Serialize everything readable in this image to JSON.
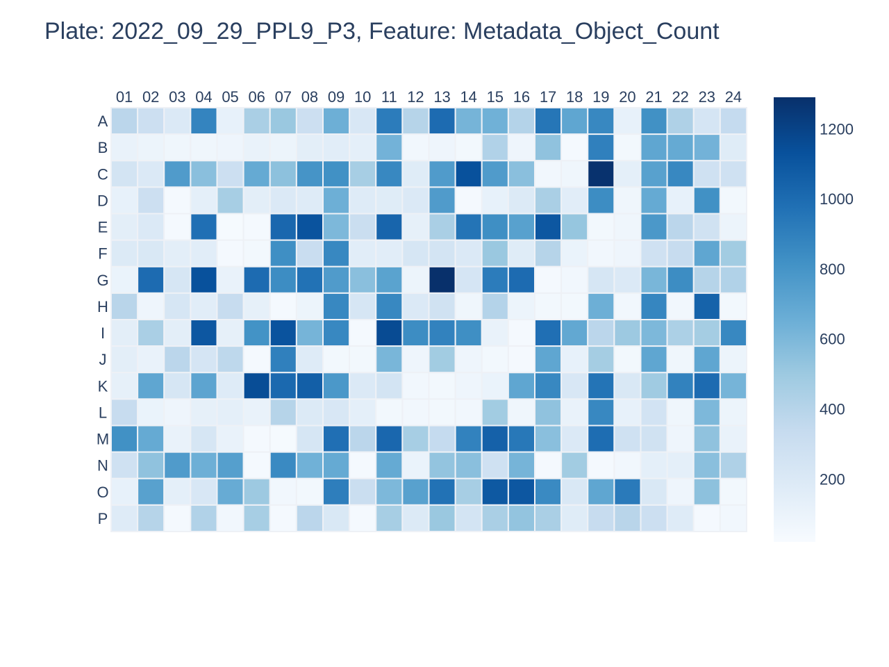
{
  "chart_data": {
    "type": "heatmap",
    "title": "Plate: 2022_09_29_PPL9_P3, Feature: Metadata_Object_Count",
    "columns": [
      "01",
      "02",
      "03",
      "04",
      "05",
      "06",
      "07",
      "08",
      "09",
      "10",
      "11",
      "12",
      "13",
      "14",
      "15",
      "16",
      "17",
      "18",
      "19",
      "20",
      "21",
      "22",
      "23",
      "24"
    ],
    "rows": [
      "A",
      "B",
      "C",
      "D",
      "E",
      "F",
      "G",
      "H",
      "I",
      "J",
      "K",
      "L",
      "M",
      "N",
      "O",
      "P"
    ],
    "values": [
      [
        380,
        300,
        200,
        880,
        120,
        450,
        510,
        300,
        650,
        220,
        920,
        400,
        1000,
        620,
        640,
        410,
        950,
        700,
        860,
        120,
        820,
        430,
        240,
        340
      ],
      [
        110,
        90,
        70,
        70,
        80,
        110,
        90,
        150,
        160,
        140,
        630,
        60,
        80,
        50,
        420,
        80,
        540,
        40,
        900,
        50,
        700,
        680,
        630,
        170
      ],
      [
        250,
        200,
        760,
        560,
        300,
        680,
        550,
        800,
        820,
        460,
        860,
        170,
        760,
        1130,
        760,
        560,
        60,
        70,
        1280,
        140,
        730,
        860,
        280,
        280
      ],
      [
        120,
        300,
        40,
        140,
        460,
        150,
        200,
        180,
        650,
        180,
        170,
        200,
        760,
        40,
        120,
        190,
        450,
        160,
        840,
        70,
        680,
        120,
        820,
        50
      ],
      [
        150,
        200,
        40,
        980,
        30,
        40,
        1020,
        1120,
        600,
        310,
        1030,
        130,
        450,
        960,
        830,
        730,
        1100,
        520,
        50,
        70,
        780,
        380,
        270,
        90
      ],
      [
        190,
        210,
        150,
        160,
        40,
        50,
        830,
        320,
        860,
        160,
        160,
        230,
        250,
        200,
        510,
        170,
        400,
        100,
        60,
        80,
        280,
        330,
        700,
        480
      ],
      [
        100,
        1000,
        230,
        1130,
        110,
        1000,
        840,
        970,
        760,
        560,
        720,
        90,
        1290,
        240,
        920,
        1000,
        40,
        60,
        230,
        200,
        610,
        840,
        400,
        420
      ],
      [
        390,
        80,
        230,
        160,
        330,
        130,
        40,
        90,
        860,
        230,
        860,
        200,
        270,
        70,
        410,
        90,
        50,
        50,
        650,
        60,
        870,
        60,
        1040,
        50
      ],
      [
        150,
        450,
        150,
        1100,
        130,
        810,
        1120,
        620,
        860,
        40,
        1160,
        840,
        890,
        830,
        110,
        40,
        980,
        690,
        380,
        500,
        600,
        440,
        470,
        860
      ],
      [
        150,
        110,
        380,
        240,
        370,
        40,
        900,
        180,
        50,
        50,
        610,
        80,
        480,
        80,
        50,
        40,
        700,
        120,
        470,
        50,
        700,
        70,
        700,
        90
      ],
      [
        130,
        700,
        230,
        710,
        180,
        1150,
        1010,
        1060,
        780,
        200,
        250,
        60,
        50,
        80,
        100,
        700,
        860,
        220,
        960,
        210,
        490,
        890,
        1000,
        620
      ],
      [
        330,
        100,
        80,
        130,
        140,
        110,
        400,
        190,
        220,
        140,
        50,
        60,
        50,
        60,
        480,
        70,
        540,
        110,
        860,
        120,
        260,
        70,
        600,
        90
      ],
      [
        820,
        680,
        110,
        230,
        110,
        40,
        30,
        230,
        980,
        380,
        1020,
        460,
        340,
        890,
        1050,
        940,
        560,
        200,
        990,
        280,
        270,
        80,
        540,
        110
      ],
      [
        280,
        540,
        760,
        650,
        740,
        40,
        850,
        640,
        680,
        40,
        680,
        100,
        530,
        560,
        280,
        620,
        40,
        480,
        40,
        60,
        140,
        140,
        560,
        430
      ],
      [
        120,
        730,
        140,
        220,
        670,
        500,
        60,
        50,
        910,
        310,
        600,
        730,
        970,
        460,
        1090,
        1100,
        850,
        210,
        700,
        930,
        210,
        80,
        550,
        50
      ],
      [
        180,
        400,
        40,
        420,
        60,
        460,
        40,
        380,
        210,
        40,
        460,
        190,
        510,
        250,
        450,
        530,
        450,
        170,
        330,
        390,
        300,
        180,
        40,
        60
      ]
    ],
    "colorscale": "Blues",
    "zmin": 20,
    "zmax": 1290,
    "colorbar": {
      "ticks": [
        200,
        400,
        600,
        800,
        1000,
        1200
      ]
    },
    "grid": false,
    "legend": "right"
  }
}
